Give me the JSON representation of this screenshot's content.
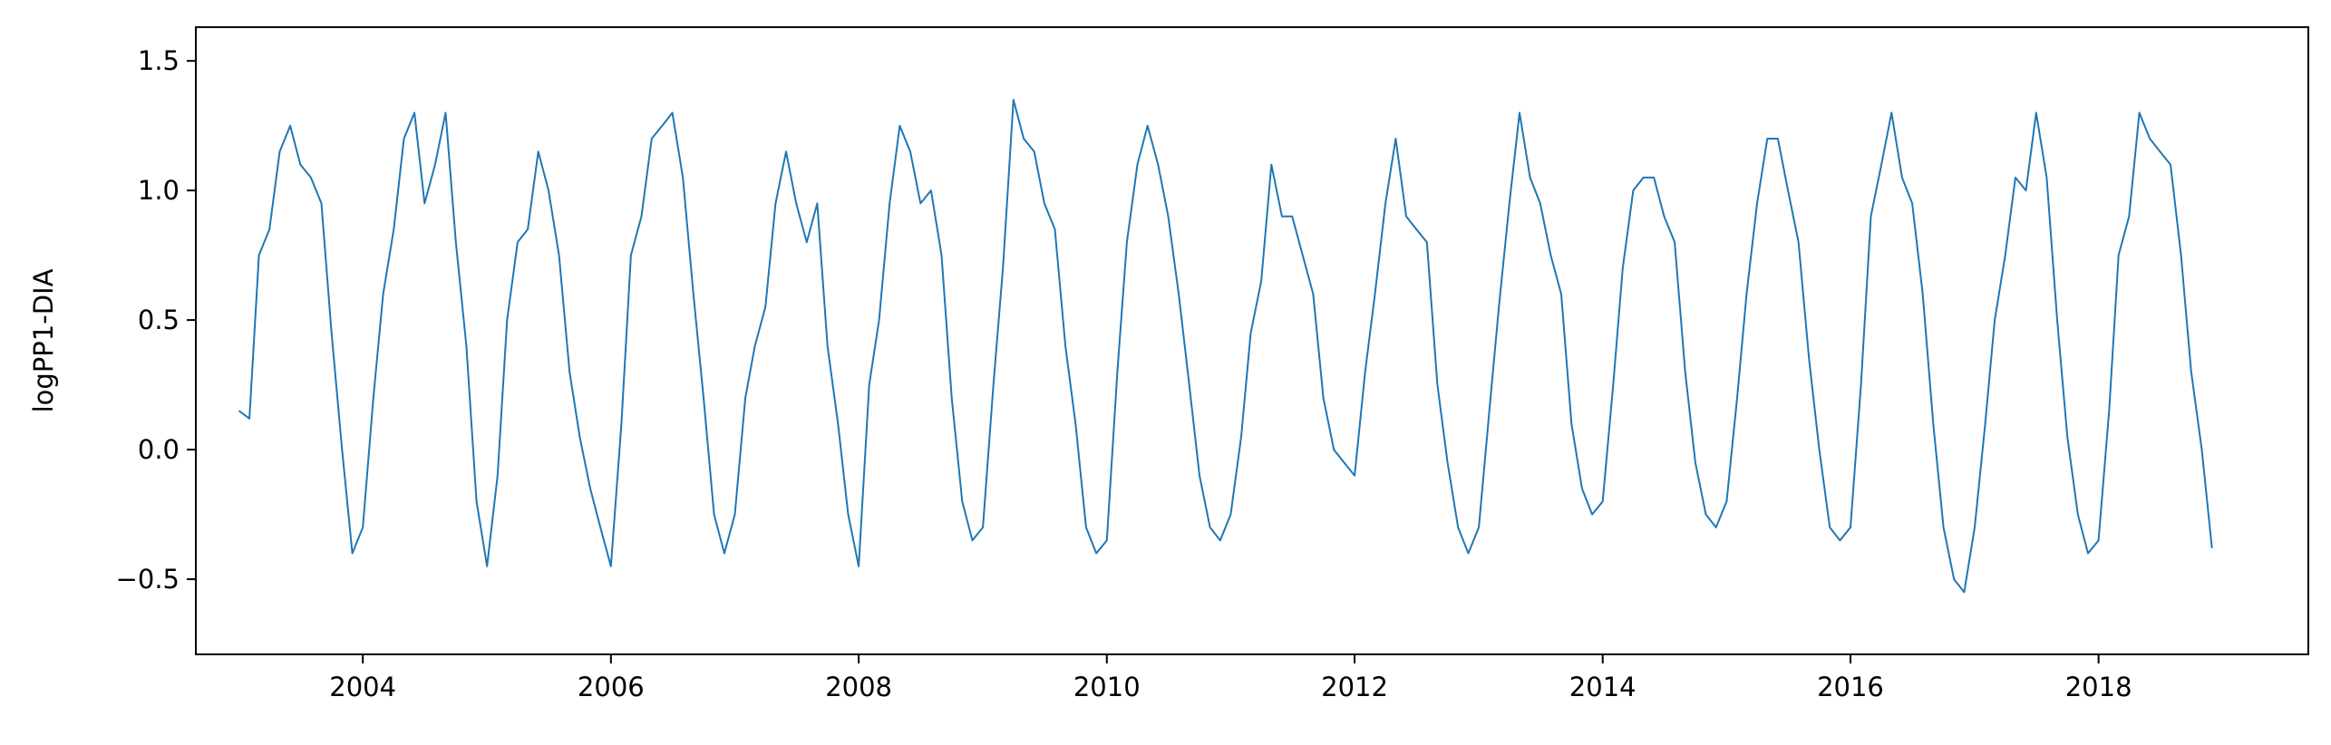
{
  "chart_data": {
    "type": "line",
    "title": "",
    "xlabel": "",
    "ylabel": "logPP1-DIA",
    "x_range": [
      "2002-08-27",
      "2019-09-11"
    ],
    "ylim": [
      -0.79,
      1.63
    ],
    "grid": false,
    "legend": "none",
    "x_ticks": [
      {
        "date": "2004-01-01",
        "label": "2004"
      },
      {
        "date": "2006-01-01",
        "label": "2006"
      },
      {
        "date": "2008-01-01",
        "label": "2008"
      },
      {
        "date": "2010-01-01",
        "label": "2010"
      },
      {
        "date": "2012-01-01",
        "label": "2012"
      },
      {
        "date": "2014-01-01",
        "label": "2014"
      },
      {
        "date": "2016-01-01",
        "label": "2016"
      },
      {
        "date": "2018-01-01",
        "label": "2018"
      }
    ],
    "y_ticks": [
      {
        "value": 1.5,
        "label": "1.5"
      },
      {
        "value": 1.0,
        "label": "1.0"
      },
      {
        "value": 0.5,
        "label": "0.5"
      },
      {
        "value": 0.0,
        "label": "0.0"
      },
      {
        "value": -0.5,
        "label": "−0.5"
      }
    ],
    "series": [
      {
        "color": "#1f77b4",
        "x": [
          "2003-01-01",
          "2003-02-01",
          "2003-03-01",
          "2003-04-01",
          "2003-05-01",
          "2003-06-01",
          "2003-07-01",
          "2003-08-01",
          "2003-09-01",
          "2003-10-01",
          "2003-11-01",
          "2003-12-01",
          "2004-01-01",
          "2004-02-01",
          "2004-03-01",
          "2004-04-01",
          "2004-05-01",
          "2004-06-01",
          "2004-07-01",
          "2004-08-01",
          "2004-09-01",
          "2004-10-01",
          "2004-11-01",
          "2004-12-01",
          "2005-01-01",
          "2005-02-01",
          "2005-03-01",
          "2005-04-01",
          "2005-05-01",
          "2005-06-01",
          "2005-07-01",
          "2005-08-01",
          "2005-09-01",
          "2005-10-01",
          "2005-11-01",
          "2005-12-01",
          "2006-01-01",
          "2006-02-01",
          "2006-03-01",
          "2006-04-01",
          "2006-05-01",
          "2006-06-01",
          "2006-07-01",
          "2006-08-01",
          "2006-09-01",
          "2006-10-01",
          "2006-11-01",
          "2006-12-01",
          "2007-01-01",
          "2007-02-01",
          "2007-03-01",
          "2007-04-01",
          "2007-05-01",
          "2007-06-01",
          "2007-07-01",
          "2007-08-01",
          "2007-09-01",
          "2007-10-01",
          "2007-11-01",
          "2007-12-01",
          "2008-01-01",
          "2008-02-01",
          "2008-03-01",
          "2008-04-01",
          "2008-05-01",
          "2008-06-01",
          "2008-07-01",
          "2008-08-01",
          "2008-09-01",
          "2008-10-01",
          "2008-11-01",
          "2008-12-01",
          "2009-01-01",
          "2009-02-01",
          "2009-03-01",
          "2009-04-01",
          "2009-05-01",
          "2009-06-01",
          "2009-07-01",
          "2009-08-01",
          "2009-09-01",
          "2009-10-01",
          "2009-11-01",
          "2009-12-01",
          "2010-01-01",
          "2010-02-01",
          "2010-03-01",
          "2010-04-01",
          "2010-05-01",
          "2010-06-01",
          "2010-07-01",
          "2010-08-01",
          "2010-09-01",
          "2010-10-01",
          "2010-11-01",
          "2010-12-01",
          "2011-01-01",
          "2011-02-01",
          "2011-03-01",
          "2011-04-01",
          "2011-05-01",
          "2011-06-01",
          "2011-07-01",
          "2011-08-01",
          "2011-09-01",
          "2011-10-01",
          "2011-11-01",
          "2011-12-01",
          "2012-01-01",
          "2012-02-01",
          "2012-03-01",
          "2012-04-01",
          "2012-05-01",
          "2012-06-01",
          "2012-07-01",
          "2012-08-01",
          "2012-09-01",
          "2012-10-01",
          "2012-11-01",
          "2012-12-01",
          "2013-01-01",
          "2013-02-01",
          "2013-03-01",
          "2013-04-01",
          "2013-05-01",
          "2013-06-01",
          "2013-07-01",
          "2013-08-01",
          "2013-09-01",
          "2013-10-01",
          "2013-11-01",
          "2013-12-01",
          "2014-01-01",
          "2014-02-01",
          "2014-03-01",
          "2014-04-01",
          "2014-05-01",
          "2014-06-01",
          "2014-07-01",
          "2014-08-01",
          "2014-09-01",
          "2014-10-01",
          "2014-11-01",
          "2014-12-01",
          "2015-01-01",
          "2015-02-01",
          "2015-03-01",
          "2015-04-01",
          "2015-05-01",
          "2015-06-01",
          "2015-07-01",
          "2015-08-01",
          "2015-09-01",
          "2015-10-01",
          "2015-11-01",
          "2015-12-01",
          "2016-01-01",
          "2016-02-01",
          "2016-03-01",
          "2016-04-01",
          "2016-05-01",
          "2016-06-01",
          "2016-07-01",
          "2016-08-01",
          "2016-09-01",
          "2016-10-01",
          "2016-11-01",
          "2016-12-01",
          "2017-01-01",
          "2017-02-01",
          "2017-03-01",
          "2017-04-01",
          "2017-05-01",
          "2017-06-01",
          "2017-07-01",
          "2017-08-01",
          "2017-09-01",
          "2017-10-01",
          "2017-11-01",
          "2017-12-01",
          "2018-01-01",
          "2018-02-01",
          "2018-03-01",
          "2018-04-01",
          "2018-05-01",
          "2018-06-01",
          "2018-07-01",
          "2018-08-01",
          "2018-09-01",
          "2018-10-01",
          "2018-11-01",
          "2018-12-01"
        ],
        "y": [
          0.15,
          0.12,
          0.75,
          0.85,
          1.15,
          1.25,
          1.1,
          1.05,
          0.95,
          0.45,
          0.0,
          -0.4,
          -0.3,
          0.2,
          0.6,
          0.85,
          1.2,
          1.3,
          0.95,
          1.1,
          1.3,
          0.8,
          0.4,
          -0.2,
          -0.45,
          -0.1,
          0.5,
          0.8,
          0.85,
          1.15,
          1.0,
          0.75,
          0.3,
          0.05,
          -0.15,
          -0.3,
          -0.45,
          0.1,
          0.75,
          0.9,
          1.2,
          1.25,
          1.3,
          1.05,
          0.6,
          0.2,
          -0.25,
          -0.4,
          -0.25,
          0.2,
          0.4,
          0.55,
          0.95,
          1.15,
          0.95,
          0.8,
          0.95,
          0.4,
          0.1,
          -0.25,
          -0.45,
          0.25,
          0.5,
          0.95,
          1.25,
          1.15,
          0.95,
          1.0,
          0.75,
          0.2,
          -0.2,
          -0.35,
          -0.3,
          0.25,
          0.7,
          1.35,
          1.2,
          1.15,
          0.95,
          0.85,
          0.4,
          0.1,
          -0.3,
          -0.4,
          -0.35,
          0.3,
          0.8,
          1.1,
          1.25,
          1.1,
          0.9,
          0.6,
          0.25,
          -0.1,
          -0.3,
          -0.35,
          -0.25,
          0.05,
          0.45,
          0.65,
          1.1,
          0.9,
          0.9,
          0.75,
          0.6,
          0.2,
          0.0,
          -0.05,
          -0.1,
          0.3,
          0.6,
          0.95,
          1.2,
          0.9,
          0.85,
          0.8,
          0.25,
          -0.05,
          -0.3,
          -0.4,
          -0.3,
          0.15,
          0.55,
          0.95,
          1.3,
          1.05,
          0.95,
          0.75,
          0.6,
          0.1,
          -0.15,
          -0.25,
          -0.2,
          0.25,
          0.7,
          1.0,
          1.05,
          1.05,
          0.9,
          0.8,
          0.3,
          -0.05,
          -0.25,
          -0.3,
          -0.2,
          0.2,
          0.6,
          0.95,
          1.2,
          1.2,
          1.0,
          0.8,
          0.35,
          0.0,
          -0.3,
          -0.35,
          -0.3,
          0.25,
          0.9,
          1.1,
          1.3,
          1.05,
          0.95,
          0.6,
          0.1,
          -0.3,
          -0.5,
          -0.55,
          -0.3,
          0.1,
          0.5,
          0.75,
          1.05,
          1.0,
          1.3,
          1.05,
          0.5,
          0.05,
          -0.25,
          -0.4,
          -0.35,
          0.15,
          0.75,
          0.9,
          1.3,
          1.2,
          1.15,
          1.1,
          0.75,
          0.3,
          0.0,
          -0.38
        ]
      }
    ]
  }
}
